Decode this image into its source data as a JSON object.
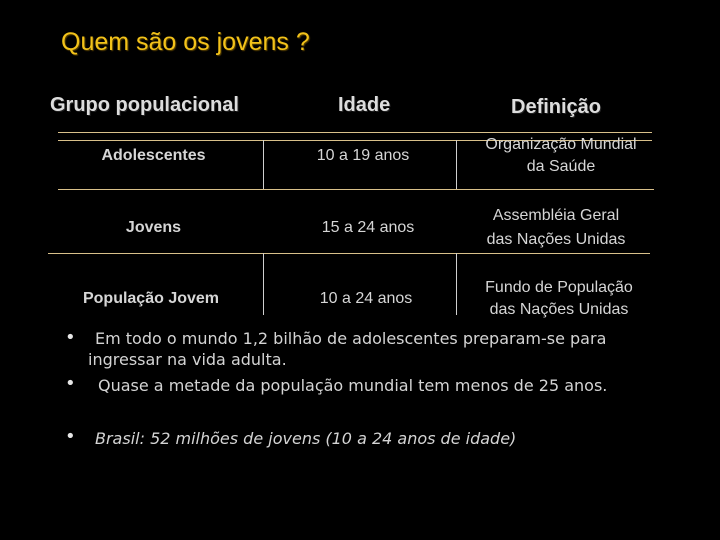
{
  "slide": {
    "title": "Quem são os jovens ?"
  },
  "table": {
    "headers": [
      "Grupo populacional",
      "Idade",
      "Definição"
    ],
    "rows": [
      {
        "group": "Adolescentes",
        "age": "10 a 19 anos",
        "definition_line1": "Organização Mundial",
        "definition_line2": "da Saúde"
      },
      {
        "group": "Jovens",
        "age": "15 a 24 anos",
        "definition_line1": "Assembléia Geral",
        "definition_line2": "das Nações Unidas"
      },
      {
        "group": "População Jovem",
        "age": "10 a 24 anos",
        "definition_line1": "Fundo de População",
        "definition_line2": "das Nações Unidas"
      }
    ]
  },
  "bullets": [
    {
      "line1": "Em todo o mundo 1,2 bilhão de adolescentes preparam-se para",
      "line2": "ingressar na vida adulta."
    },
    {
      "line1": "Quase a metade da população mundial tem menos de 25 anos."
    },
    {
      "line1": "Brasil: 52 milhões de jovens (10 a 24 anos de idade)"
    }
  ]
}
